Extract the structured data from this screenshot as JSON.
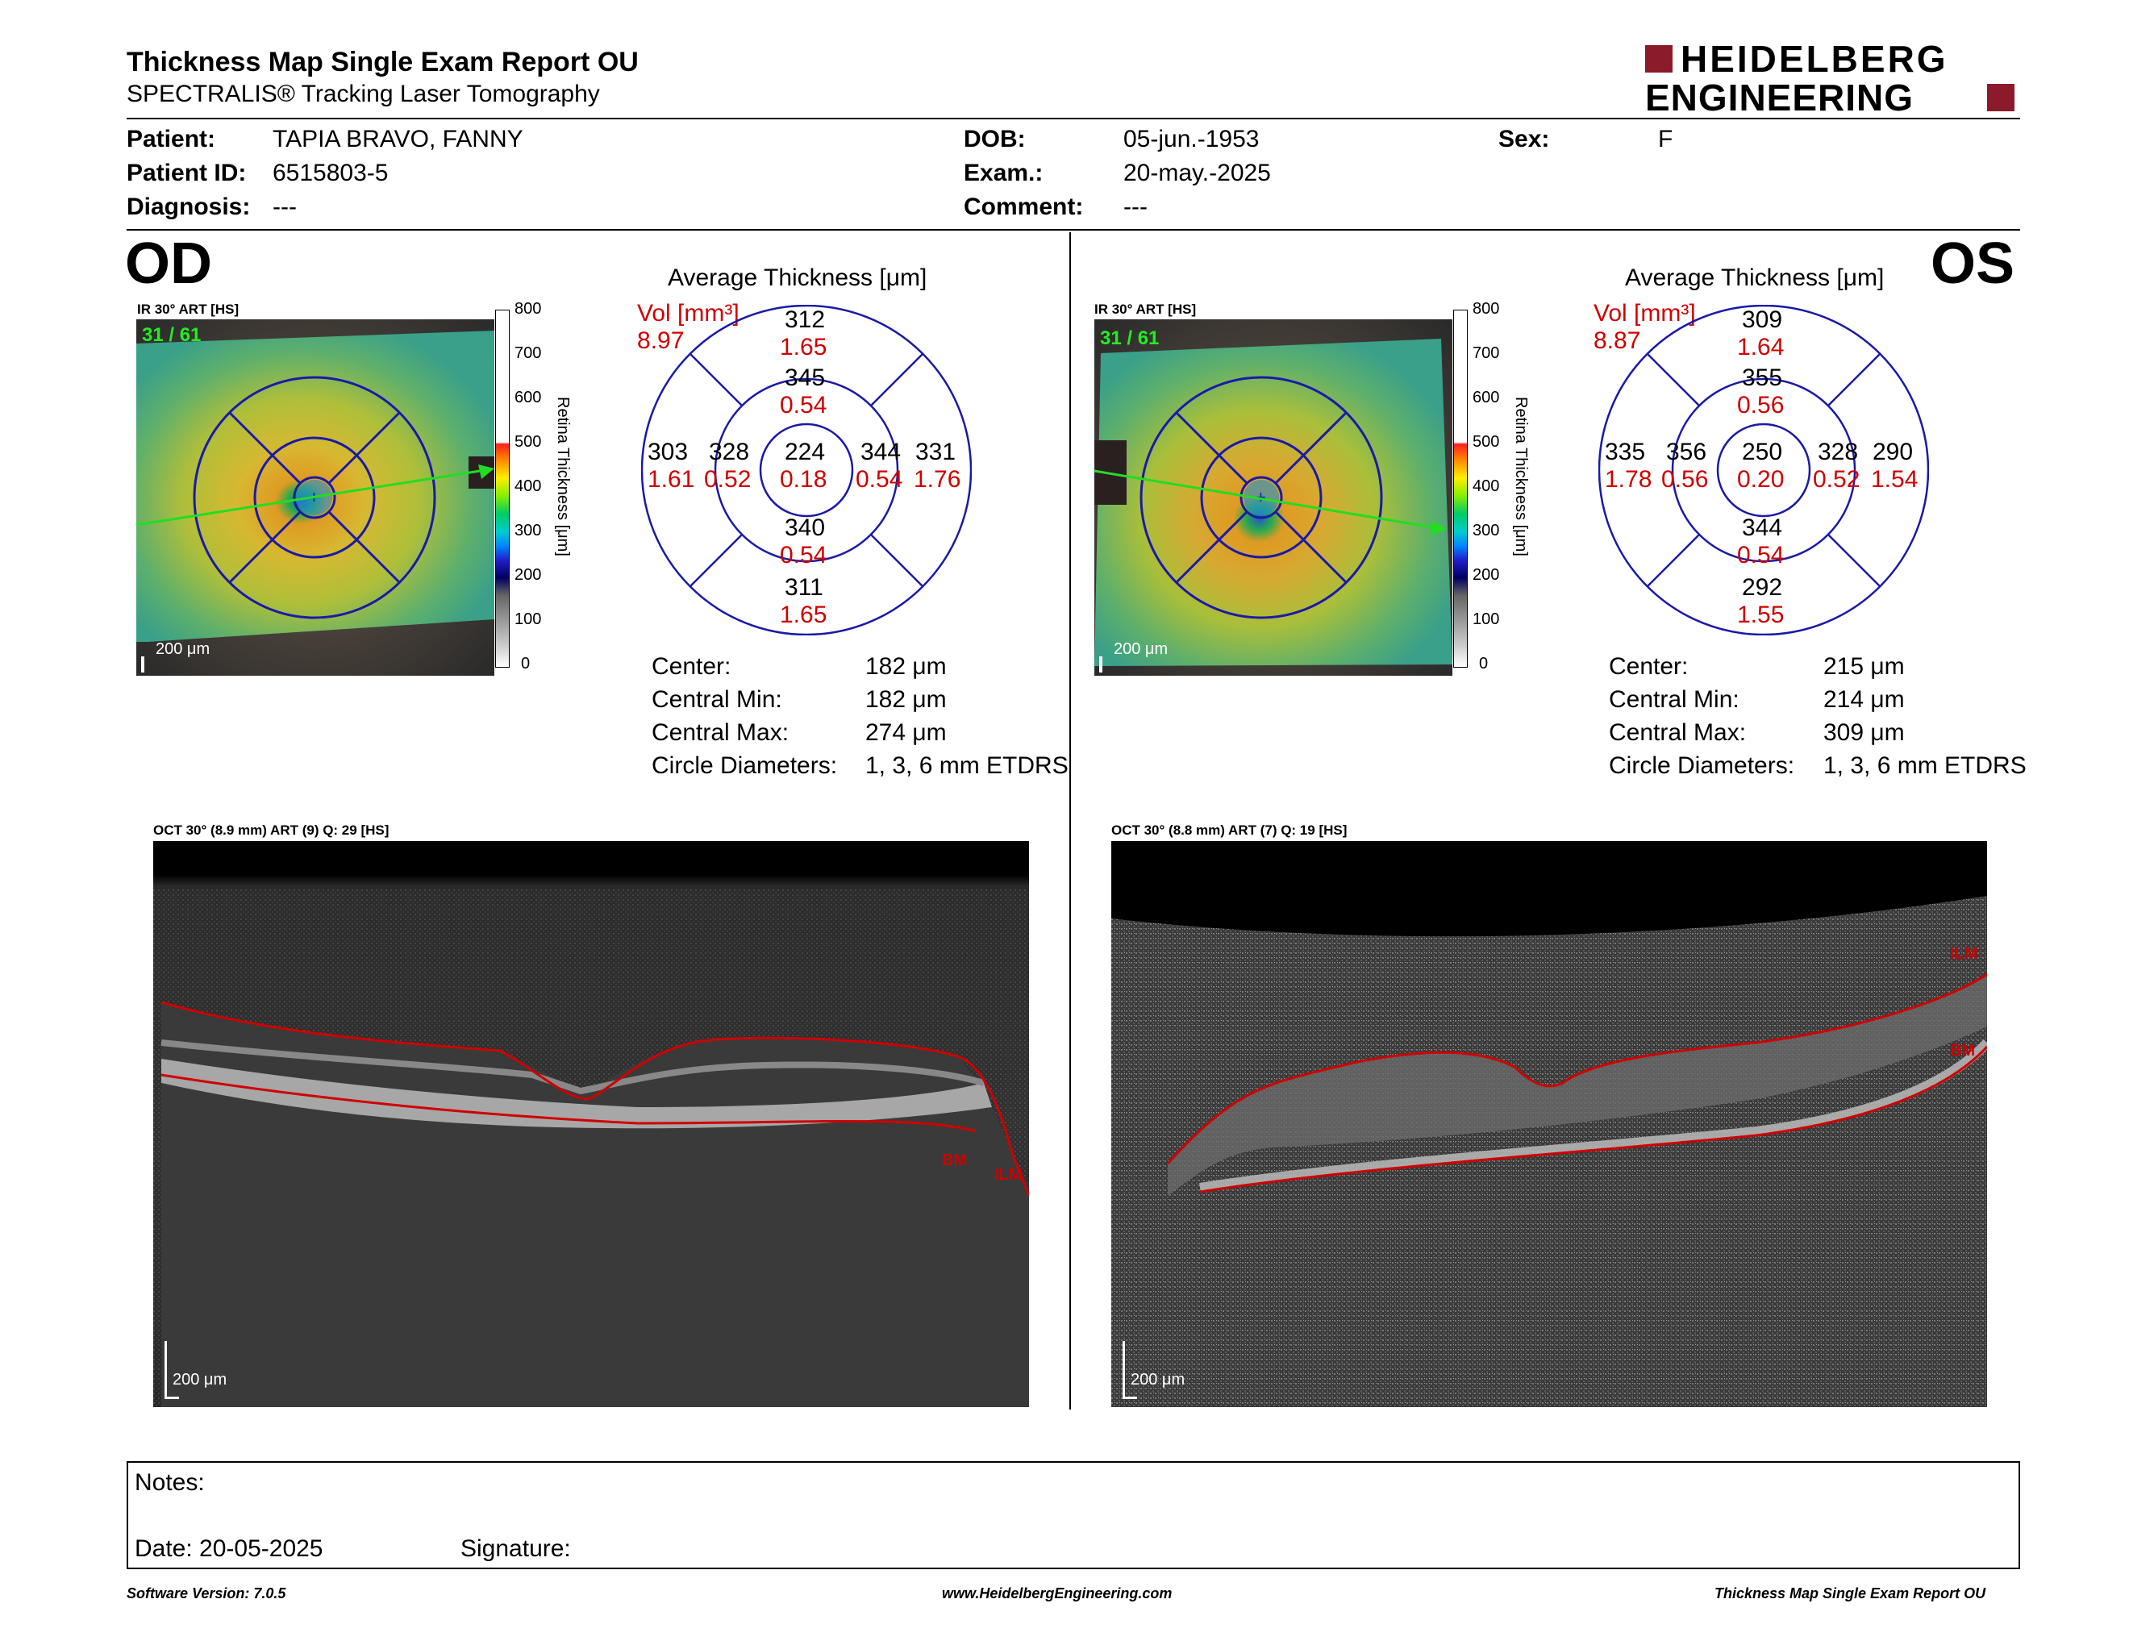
{
  "header": {
    "title": "Thickness Map Single Exam Report OU",
    "subtitle": "SPECTRALIS® Tracking Laser Tomography",
    "logo_line1": "HEIDELBERG",
    "logo_line2": "ENGINEERING"
  },
  "patient": {
    "patient_label": "Patient:",
    "patient_value": "TAPIA BRAVO, FANNY",
    "id_label": "Patient ID:",
    "id_value": "6515803-5",
    "diagnosis_label": "Diagnosis:",
    "diagnosis_value": "---",
    "dob_label": "DOB:",
    "dob_value": "05-jun.-1953",
    "exam_label": "Exam.:",
    "exam_value": "20-may.-2025",
    "comment_label": "Comment:",
    "comment_value": "---",
    "sex_label": "Sex:",
    "sex_value": "F"
  },
  "colorbar": {
    "ticks": [
      "800",
      "700",
      "600",
      "500",
      "400",
      "300",
      "200",
      "100",
      "0"
    ],
    "label": "Retina Thickness [μm]"
  },
  "od": {
    "eye": "OD",
    "ir_label": "IR 30° ART [HS]",
    "frames": "31 / 61",
    "scale": "200 μm",
    "avg_title": "Average Thickness [μm]",
    "vol_label": "Vol [mm³]",
    "vol_value": "8.97",
    "grid": {
      "center_t": "224",
      "center_v": "0.18",
      "sup_in_t": "345",
      "sup_in_v": "0.54",
      "sup_out_t": "312",
      "sup_out_v": "1.65",
      "inf_in_t": "340",
      "inf_in_v": "0.54",
      "inf_out_t": "311",
      "inf_out_v": "1.65",
      "left_out_t": "303",
      "left_out_v": "1.61",
      "left_in_t": "328",
      "left_in_v": "0.52",
      "right_in_t": "344",
      "right_in_v": "0.54",
      "right_out_t": "331",
      "right_out_v": "1.76"
    },
    "stats": {
      "center_label": "Center:",
      "center_value": "182 μm",
      "min_label": "Central Min:",
      "min_value": "182 μm",
      "max_label": "Central Max:",
      "max_value": "274 μm",
      "diam_label": "Circle Diameters:",
      "diam_value": "1, 3, 6 mm ETDRS"
    },
    "oct_label": "OCT 30° (8.9 mm) ART (9) Q: 29 [HS]",
    "oct_scale": "200 μm",
    "bm": "BM",
    "ilm": "ILM"
  },
  "os": {
    "eye": "OS",
    "ir_label": "IR 30° ART [HS]",
    "frames": "31 / 61",
    "scale": "200 μm",
    "avg_title": "Average Thickness [μm]",
    "vol_label": "Vol [mm³]",
    "vol_value": "8.87",
    "grid": {
      "center_t": "250",
      "center_v": "0.20",
      "sup_in_t": "355",
      "sup_in_v": "0.56",
      "sup_out_t": "309",
      "sup_out_v": "1.64",
      "inf_in_t": "344",
      "inf_in_v": "0.54",
      "inf_out_t": "292",
      "inf_out_v": "1.55",
      "left_out_t": "335",
      "left_out_v": "1.78",
      "left_in_t": "356",
      "left_in_v": "0.56",
      "right_in_t": "328",
      "right_in_v": "0.52",
      "right_out_t": "290",
      "right_out_v": "1.54"
    },
    "stats": {
      "center_label": "Center:",
      "center_value": "215 μm",
      "min_label": "Central Min:",
      "min_value": "214 μm",
      "max_label": "Central Max:",
      "max_value": "309 μm",
      "diam_label": "Circle Diameters:",
      "diam_value": "1, 3, 6 mm ETDRS"
    },
    "oct_label": "OCT 30° (8.8 mm) ART (7) Q: 19 [HS]",
    "oct_scale": "200 μm",
    "bm": "BM",
    "ilm": "ILM"
  },
  "notes": {
    "notes_label": "Notes:",
    "date_label": "Date: 20-05-2025",
    "signature_label": "Signature:"
  },
  "footer": {
    "left": "Software Version: 7.0.5",
    "center": "www.HeidelbergEngineering.com",
    "right": "Thickness Map Single Exam Report OU"
  },
  "colors": {
    "red_text": "#d00000",
    "grid_blue": "#1a1aa8",
    "logo_red": "#8b1a2a"
  }
}
